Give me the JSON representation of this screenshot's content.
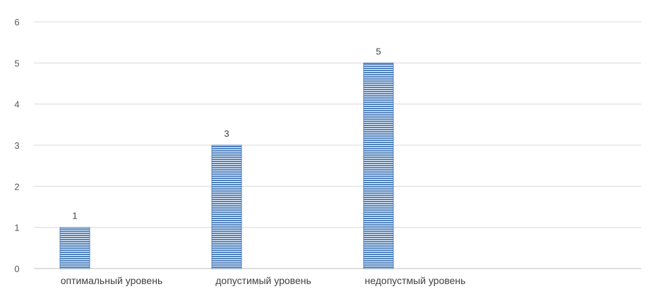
{
  "chart_data": {
    "type": "bar",
    "categories": [
      "оптимальный уровень",
      "допустимый уровень",
      "недопустмый уровень"
    ],
    "values": [
      1,
      3,
      5
    ],
    "data_labels": [
      "1",
      "3",
      "5"
    ],
    "title": "",
    "xlabel": "",
    "ylabel": "",
    "ylim": [
      0,
      6
    ],
    "yticks": [
      "0",
      "1",
      "2",
      "3",
      "4",
      "5",
      "6"
    ],
    "grid": true,
    "legend": "none",
    "bar_color": "#4f81bd",
    "bar_fill": "horizontal-stripes"
  }
}
